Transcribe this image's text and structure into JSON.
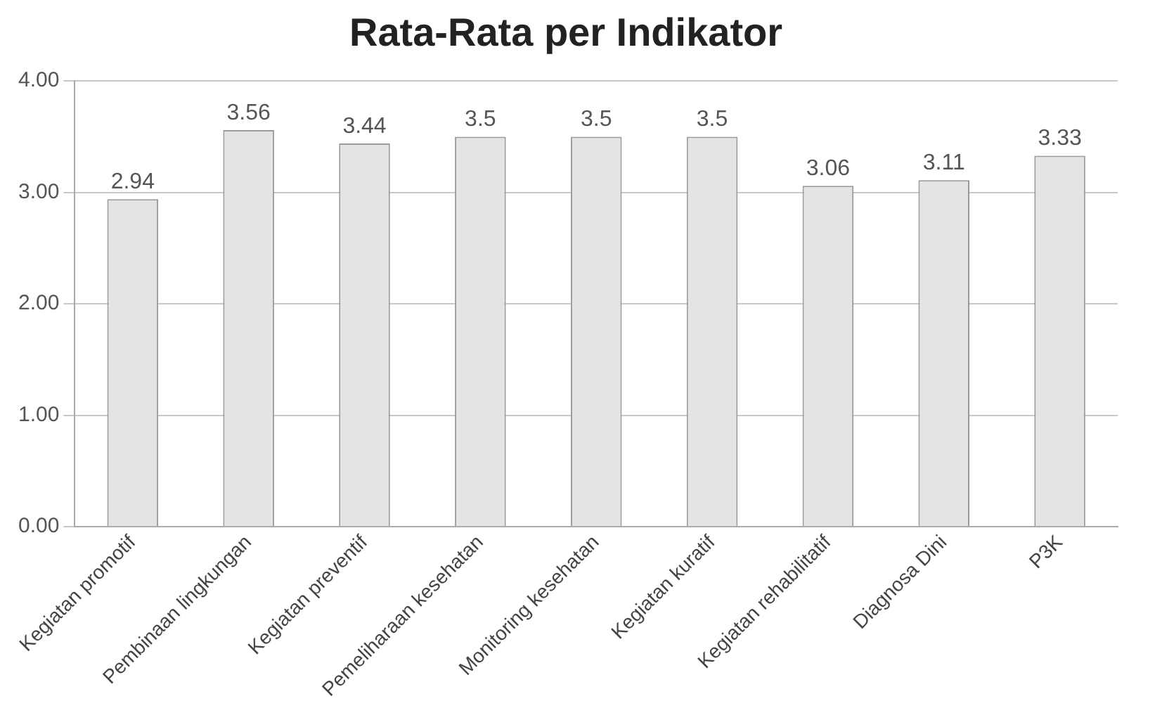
{
  "chart_data": {
    "type": "bar",
    "title": "Rata-Rata per Indikator",
    "categories": [
      "Kegiatan promotif",
      "Pembinaan lingkungan",
      "Kegiatan preventif",
      "Pemeliharaan kesehatan",
      "Monitoring kesehatan",
      "Kegiatan kuratif",
      "Kegiatan rehabilitatif",
      "Diagnosa Dini",
      "P3K"
    ],
    "values": [
      2.94,
      3.56,
      3.44,
      3.5,
      3.5,
      3.5,
      3.06,
      3.11,
      3.33
    ],
    "color": "#e4e4e4",
    "ylim": [
      0,
      4
    ],
    "yticks": [
      {
        "value": 0,
        "label": "0.00"
      },
      {
        "value": 1,
        "label": "1.00"
      },
      {
        "value": 2,
        "label": "2.00"
      },
      {
        "value": 3,
        "label": "3.00"
      },
      {
        "value": 4,
        "label": "4.00"
      }
    ],
    "grid": "y",
    "data_labels": true,
    "legend": false
  }
}
